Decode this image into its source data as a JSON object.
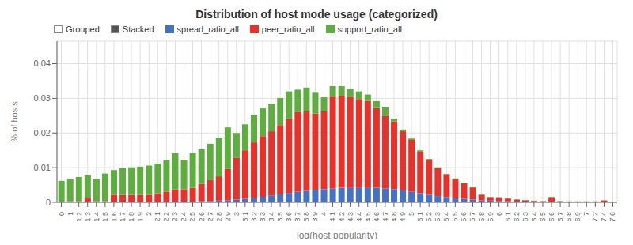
{
  "chart_data": {
    "type": "bar",
    "stacked": true,
    "title": "Distribution of host mode usage (categorized)",
    "xlabel": "log(host popularity)",
    "ylabel": "% of hosts",
    "categories": [
      "0",
      "1",
      "1.2",
      "1.3",
      "1.4",
      "1.5",
      "1.6",
      "1.7",
      "1.8",
      "1.9",
      "2",
      "2.1",
      "2.2",
      "2.3",
      "2.4",
      "2.5",
      "2.6",
      "2.7",
      "2.8",
      "2.9",
      "3",
      "3.1",
      "3.2",
      "3.3",
      "3.4",
      "3.5",
      "3.6",
      "3.7",
      "3.8",
      "3.9",
      "4",
      "4.1",
      "4.2",
      "4.3",
      "4.4",
      "4.5",
      "4.6",
      "4.7",
      "4.8",
      "4.9",
      "5",
      "5.1",
      "5.2",
      "5.3",
      "5.4",
      "5.5",
      "5.6",
      "5.7",
      "5.8",
      "5.9",
      "6",
      "6.1",
      "6.2",
      "6.3",
      "6.4",
      "6.5",
      "6.6",
      "6.7",
      "6.8",
      "6.9",
      "7",
      "7.2",
      "7.4",
      "7.6"
    ],
    "series": [
      {
        "name": "spread_ratio_all",
        "color": "#4472C4",
        "values": [
          0.0001,
          0.0001,
          0.0001,
          0.0001,
          0.0001,
          0.0001,
          0.0001,
          0.0001,
          0.0001,
          0.0001,
          0.0001,
          0.0001,
          0.0001,
          0.0002,
          0.0002,
          0.0002,
          0.0003,
          0.0004,
          0.0005,
          0.0006,
          0.0008,
          0.001,
          0.0013,
          0.0016,
          0.002,
          0.0023,
          0.0027,
          0.003,
          0.0033,
          0.0036,
          0.0038,
          0.004,
          0.0042,
          0.0043,
          0.0043,
          0.0043,
          0.0042,
          0.004,
          0.0038,
          0.0035,
          0.003,
          0.0026,
          0.0022,
          0.0018,
          0.0015,
          0.0012,
          0.001,
          0.0008,
          0.0006,
          0.0005,
          0.0004,
          0.0003,
          0.0002,
          0.0002,
          0.0001,
          0.0001,
          0.0001,
          0.0001,
          0.0001,
          0.0001,
          0.0001,
          0.0001,
          0.0,
          0.0
        ]
      },
      {
        "name": "peer_ratio_all",
        "color": "#E8312A",
        "values": [
          0.0001,
          0.0002,
          0.0002,
          0.0012,
          0.0002,
          0.0002,
          0.002,
          0.002,
          0.002,
          0.002,
          0.002,
          0.0025,
          0.003,
          0.0035,
          0.0035,
          0.004,
          0.005,
          0.006,
          0.007,
          0.009,
          0.012,
          0.014,
          0.016,
          0.0175,
          0.0185,
          0.02,
          0.0215,
          0.023,
          0.023,
          0.022,
          0.0225,
          0.0265,
          0.0265,
          0.026,
          0.0255,
          0.025,
          0.023,
          0.021,
          0.0195,
          0.017,
          0.015,
          0.012,
          0.01,
          0.008,
          0.0065,
          0.0055,
          0.0045,
          0.0035,
          0.0015,
          0.001,
          0.001,
          0.0008,
          0.0006,
          0.0004,
          0.0003,
          0.0002,
          0.0014,
          0.0002,
          0.0001,
          0.0001,
          0.0001,
          0.0001,
          0.0005,
          0.0001
        ]
      },
      {
        "name": "support_ratio_all",
        "color": "#5DAD3F",
        "values": [
          0.006,
          0.0065,
          0.007,
          0.0065,
          0.0065,
          0.008,
          0.0072,
          0.0078,
          0.008,
          0.0082,
          0.0085,
          0.0085,
          0.009,
          0.0105,
          0.0085,
          0.01,
          0.01,
          0.0105,
          0.011,
          0.012,
          0.0072,
          0.0075,
          0.008,
          0.008,
          0.008,
          0.0078,
          0.0078,
          0.0065,
          0.0068,
          0.006,
          0.004,
          0.003,
          0.0028,
          0.0025,
          0.0022,
          0.0018,
          0.002,
          0.0025,
          0.0008,
          0.0005,
          0.0004,
          0.0004,
          0.0003,
          0.0003,
          0.0002,
          0.0002,
          0.0002,
          0.0002,
          0.0002,
          0.0001,
          0.0001,
          0.0001,
          0.0001,
          0.0001,
          0.0001,
          0.0001,
          0.0001,
          0.0001,
          0.0001,
          0.0001,
          0.0001,
          0.0001,
          0.0001,
          0.0001
        ]
      }
    ],
    "ylim": [
      0,
      0.0465
    ],
    "yticks": [
      0,
      0.01,
      0.02,
      0.03,
      0.04
    ],
    "grid": true,
    "legend": "top",
    "annotations": [
      {
        "text": "Grouped",
        "color": "#FFFFFF"
      },
      {
        "text": "Stacked",
        "color": "#555555"
      }
    ]
  }
}
